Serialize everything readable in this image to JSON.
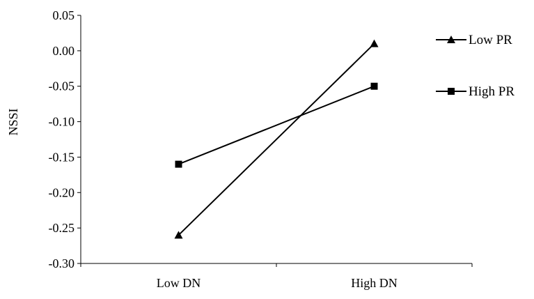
{
  "chart_data": {
    "type": "line",
    "categories": [
      "Low DN",
      "High DN"
    ],
    "series": [
      {
        "name": "Low PR",
        "marker": "triangle",
        "values": [
          -0.26,
          0.01
        ]
      },
      {
        "name": "High PR",
        "marker": "square",
        "values": [
          -0.16,
          -0.05
        ]
      }
    ],
    "xlabel": "",
    "ylabel": "NSSI",
    "ylim": [
      -0.3,
      0.05
    ],
    "yticks": [
      "-0.30",
      "-0.25",
      "-0.20",
      "-0.15",
      "-0.10",
      "-0.05",
      "0.00",
      "0.05"
    ],
    "grid": false,
    "legend_position": "right",
    "colors": {
      "line": "#000000",
      "background": "#ffffff"
    }
  }
}
